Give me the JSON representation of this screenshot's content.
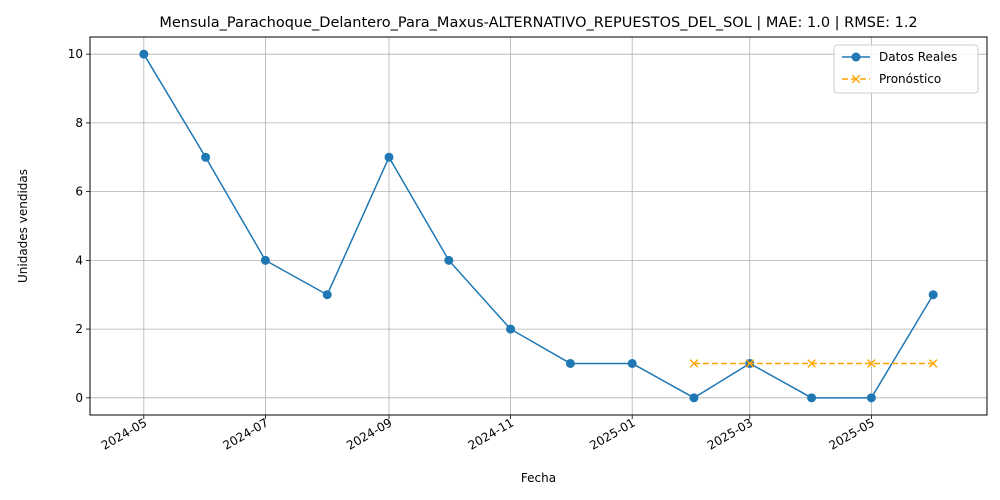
{
  "chart_data": {
    "type": "line",
    "title": "Mensula_Parachoque_Delantero_Para_Maxus-ALTERNATIVO_REPUESTOS_DEL_SOL | MAE: 1.0 | RMSE: 1.2",
    "xlabel": "Fecha",
    "ylabel": "Unidades vendidas",
    "x_ticks": [
      "2024-05-01",
      "2024-07-01",
      "2024-09-01",
      "2024-11-01",
      "2025-01-01",
      "2025-03-01",
      "2025-05-01"
    ],
    "x_tick_labels": [
      "2024-05",
      "2024-07",
      "2024-09",
      "2024-11",
      "2025-01",
      "2025-03",
      "2025-05"
    ],
    "y_ticks": [
      0,
      2,
      4,
      6,
      8,
      10
    ],
    "y_tick_labels": [
      "0",
      "2",
      "4",
      "6",
      "8",
      "10"
    ],
    "xlim": [
      "2024-04-04",
      "2025-06-28"
    ],
    "ylim": [
      -0.5,
      10.5
    ],
    "grid": true,
    "legend_position": "top-right",
    "series": [
      {
        "name": "Datos Reales",
        "color": "#1f77b4",
        "line_style": "solid",
        "marker": "circle",
        "x": [
          "2024-05-01",
          "2024-06-01",
          "2024-07-01",
          "2024-08-01",
          "2024-09-01",
          "2024-10-01",
          "2024-11-01",
          "2024-12-01",
          "2025-01-01",
          "2025-02-01",
          "2025-03-01",
          "2025-04-01",
          "2025-05-01",
          "2025-06-01"
        ],
        "values": [
          10,
          7,
          4,
          3,
          7,
          4,
          2,
          1,
          1,
          0,
          1,
          0,
          0,
          3
        ]
      },
      {
        "name": "Pronóstico",
        "color": "#ffa500",
        "line_style": "dashed",
        "marker": "x",
        "x": [
          "2025-02-01",
          "2025-03-01",
          "2025-04-01",
          "2025-05-01",
          "2025-06-01"
        ],
        "values": [
          1,
          1,
          1,
          1,
          1
        ]
      }
    ]
  }
}
